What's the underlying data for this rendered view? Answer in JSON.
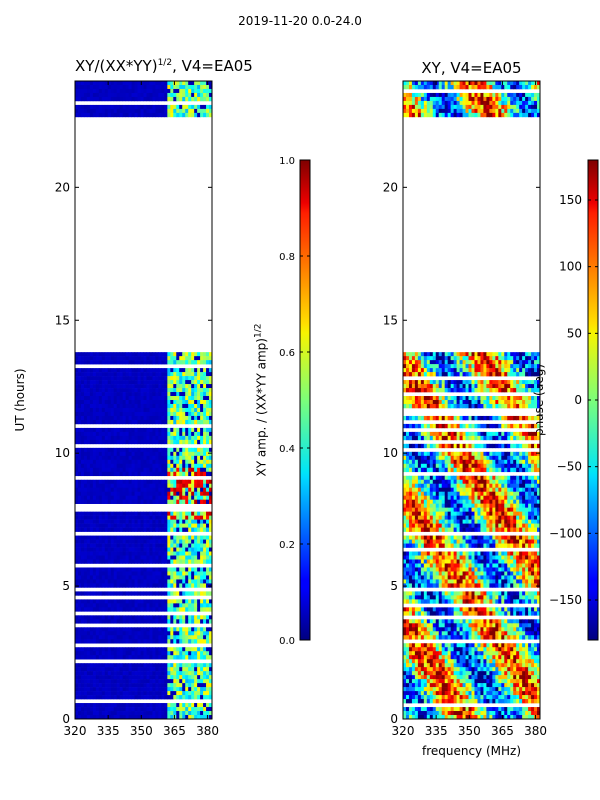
{
  "suptitle": "2019-11-20 0.0-24.0",
  "chart_data": [
    {
      "type": "heatmap",
      "title_main": "XY/(XX*YY)",
      "title_sup": "1/2",
      "title_rest": ", V4=EA05",
      "ylabel": "UT (hours)",
      "xlim": [
        320,
        382
      ],
      "ylim": [
        0,
        24
      ],
      "xticks": [
        320,
        335,
        350,
        365,
        380
      ],
      "yticks": [
        0,
        5,
        10,
        15,
        20
      ],
      "colorbar": {
        "label_main": "XY amp. / (XX*YY amp)",
        "label_sup": "1/2",
        "range": [
          0.0,
          1.0
        ],
        "ticks": [
          "0.0",
          "0.2",
          "0.4",
          "0.6",
          "0.8",
          "1.0"
        ],
        "tick_values": [
          0.0,
          0.2,
          0.4,
          0.6,
          0.8,
          1.0
        ]
      },
      "flagged_hours": [
        [
          13.8,
          22.6
        ]
      ],
      "approx_bands": [
        {
          "label": "low-amplitude band",
          "freq": [
            320,
            362
          ],
          "value": 0.05
        },
        {
          "label": "higher-amplitude band",
          "freq": [
            362,
            382
          ],
          "value": 0.45
        }
      ]
    },
    {
      "type": "heatmap",
      "title": "XY, V4=EA05",
      "xlabel": "frequency (MHz)",
      "xlim": [
        320,
        382
      ],
      "ylim": [
        0,
        24
      ],
      "xticks": [
        320,
        335,
        350,
        365,
        380
      ],
      "yticks": [
        0,
        5,
        10,
        15,
        20
      ],
      "colorbar": {
        "label": "phase (deg)",
        "range": [
          -180,
          180
        ],
        "ticks": [
          "−150",
          "−100",
          "−50",
          "0",
          "50",
          "100",
          "150"
        ],
        "tick_values": [
          -150,
          -100,
          -50,
          0,
          50,
          100,
          150
        ]
      },
      "flagged_hours": [
        [
          13.8,
          22.6
        ]
      ]
    }
  ]
}
